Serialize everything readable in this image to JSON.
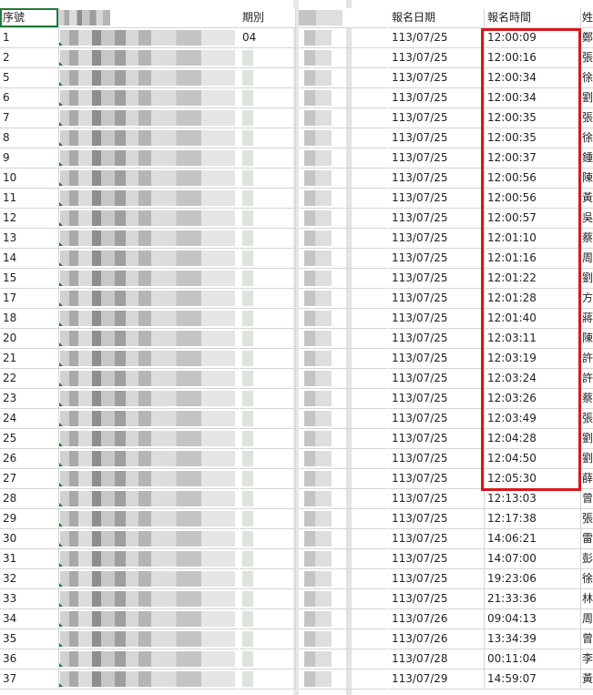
{
  "headers": {
    "seq": "序號",
    "period": "期別",
    "reg_date": "報名日期",
    "reg_time": "報名時間",
    "surname": "姓"
  },
  "rows": [
    {
      "seq": "1",
      "period": "04",
      "date": "113/07/25",
      "time": "12:00:09",
      "surname": "鄭"
    },
    {
      "seq": "2",
      "period": "",
      "date": "113/07/25",
      "time": "12:00:16",
      "surname": "張"
    },
    {
      "seq": "5",
      "period": "",
      "date": "113/07/25",
      "time": "12:00:34",
      "surname": "徐"
    },
    {
      "seq": "6",
      "period": "",
      "date": "113/07/25",
      "time": "12:00:34",
      "surname": "劉"
    },
    {
      "seq": "7",
      "period": "",
      "date": "113/07/25",
      "time": "12:00:35",
      "surname": "張"
    },
    {
      "seq": "8",
      "period": "",
      "date": "113/07/25",
      "time": "12:00:35",
      "surname": "徐"
    },
    {
      "seq": "9",
      "period": "",
      "date": "113/07/25",
      "time": "12:00:37",
      "surname": "鍾"
    },
    {
      "seq": "10",
      "period": "",
      "date": "113/07/25",
      "time": "12:00:56",
      "surname": "陳"
    },
    {
      "seq": "11",
      "period": "",
      "date": "113/07/25",
      "time": "12:00:56",
      "surname": "黃"
    },
    {
      "seq": "12",
      "period": "",
      "date": "113/07/25",
      "time": "12:00:57",
      "surname": "吳"
    },
    {
      "seq": "13",
      "period": "",
      "date": "113/07/25",
      "time": "12:01:10",
      "surname": "蔡"
    },
    {
      "seq": "14",
      "period": "",
      "date": "113/07/25",
      "time": "12:01:16",
      "surname": "周"
    },
    {
      "seq": "15",
      "period": "",
      "date": "113/07/25",
      "time": "12:01:22",
      "surname": "劉"
    },
    {
      "seq": "17",
      "period": "",
      "date": "113/07/25",
      "time": "12:01:28",
      "surname": "方"
    },
    {
      "seq": "18",
      "period": "",
      "date": "113/07/25",
      "time": "12:01:40",
      "surname": "蔣"
    },
    {
      "seq": "20",
      "period": "",
      "date": "113/07/25",
      "time": "12:03:11",
      "surname": "陳"
    },
    {
      "seq": "21",
      "period": "",
      "date": "113/07/25",
      "time": "12:03:19",
      "surname": "許"
    },
    {
      "seq": "22",
      "period": "",
      "date": "113/07/25",
      "time": "12:03:24",
      "surname": "許"
    },
    {
      "seq": "23",
      "period": "",
      "date": "113/07/25",
      "time": "12:03:26",
      "surname": "蔡"
    },
    {
      "seq": "24",
      "period": "",
      "date": "113/07/25",
      "time": "12:03:49",
      "surname": "張"
    },
    {
      "seq": "25",
      "period": "",
      "date": "113/07/25",
      "time": "12:04:28",
      "surname": "劉"
    },
    {
      "seq": "26",
      "period": "",
      "date": "113/07/25",
      "time": "12:04:50",
      "surname": "劉"
    },
    {
      "seq": "27",
      "period": "",
      "date": "113/07/25",
      "time": "12:05:30",
      "surname": "薛"
    },
    {
      "seq": "28",
      "period": "",
      "date": "113/07/25",
      "time": "12:13:03",
      "surname": "曾"
    },
    {
      "seq": "29",
      "period": "",
      "date": "113/07/25",
      "time": "12:17:38",
      "surname": "張"
    },
    {
      "seq": "30",
      "period": "",
      "date": "113/07/25",
      "time": "14:06:21",
      "surname": "雷"
    },
    {
      "seq": "31",
      "period": "",
      "date": "113/07/25",
      "time": "14:07:00",
      "surname": "彭"
    },
    {
      "seq": "32",
      "period": "",
      "date": "113/07/25",
      "time": "19:23:06",
      "surname": "徐"
    },
    {
      "seq": "33",
      "period": "",
      "date": "113/07/25",
      "time": "21:33:36",
      "surname": "林"
    },
    {
      "seq": "34",
      "period": "",
      "date": "113/07/26",
      "time": "09:04:13",
      "surname": "周"
    },
    {
      "seq": "35",
      "period": "",
      "date": "113/07/26",
      "time": "13:34:39",
      "surname": "曾"
    },
    {
      "seq": "36",
      "period": "",
      "date": "113/07/28",
      "time": "00:11:04",
      "surname": "李"
    },
    {
      "seq": "37",
      "period": "",
      "date": "113/07/29",
      "time": "14:59:07",
      "surname": "黃"
    }
  ],
  "highlight": {
    "color": "#d9171b"
  }
}
